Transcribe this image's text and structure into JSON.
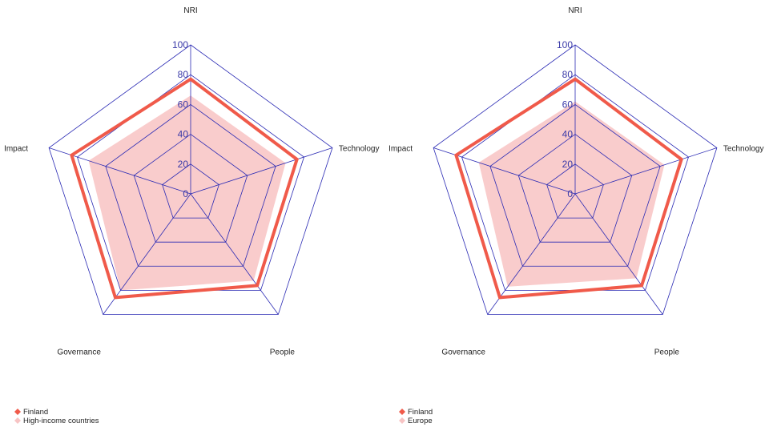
{
  "colors": {
    "grid": "#2a2ab4",
    "tick": "#3a3aa8",
    "primary": "#f05a4a",
    "comparison_fill": "#f9cccc",
    "comparison_marker": "#f7c4c4"
  },
  "chart_data": [
    {
      "type": "radar",
      "axes": [
        "NRI",
        "Technology",
        "People",
        "Governance",
        "Impact"
      ],
      "ticks": [
        0,
        20,
        40,
        60,
        80,
        100
      ],
      "range": [
        0,
        100
      ],
      "series": [
        {
          "name": "Finland",
          "values": [
            77,
            75,
            76,
            86,
            84
          ],
          "style": "line"
        },
        {
          "name": "High-income countries",
          "values": [
            66,
            67,
            72,
            80,
            72
          ],
          "style": "area"
        }
      ],
      "legend_position": "bottom-left"
    },
    {
      "type": "radar",
      "axes": [
        "NRI",
        "Technology",
        "People",
        "Governance",
        "Impact"
      ],
      "ticks": [
        0,
        20,
        40,
        60,
        80,
        100
      ],
      "range": [
        0,
        100
      ],
      "series": [
        {
          "name": "Finland",
          "values": [
            77,
            75,
            76,
            86,
            84
          ],
          "style": "line"
        },
        {
          "name": "Europe",
          "values": [
            62,
            63,
            70,
            77,
            68
          ],
          "style": "area"
        }
      ],
      "legend_position": "bottom-left"
    }
  ]
}
